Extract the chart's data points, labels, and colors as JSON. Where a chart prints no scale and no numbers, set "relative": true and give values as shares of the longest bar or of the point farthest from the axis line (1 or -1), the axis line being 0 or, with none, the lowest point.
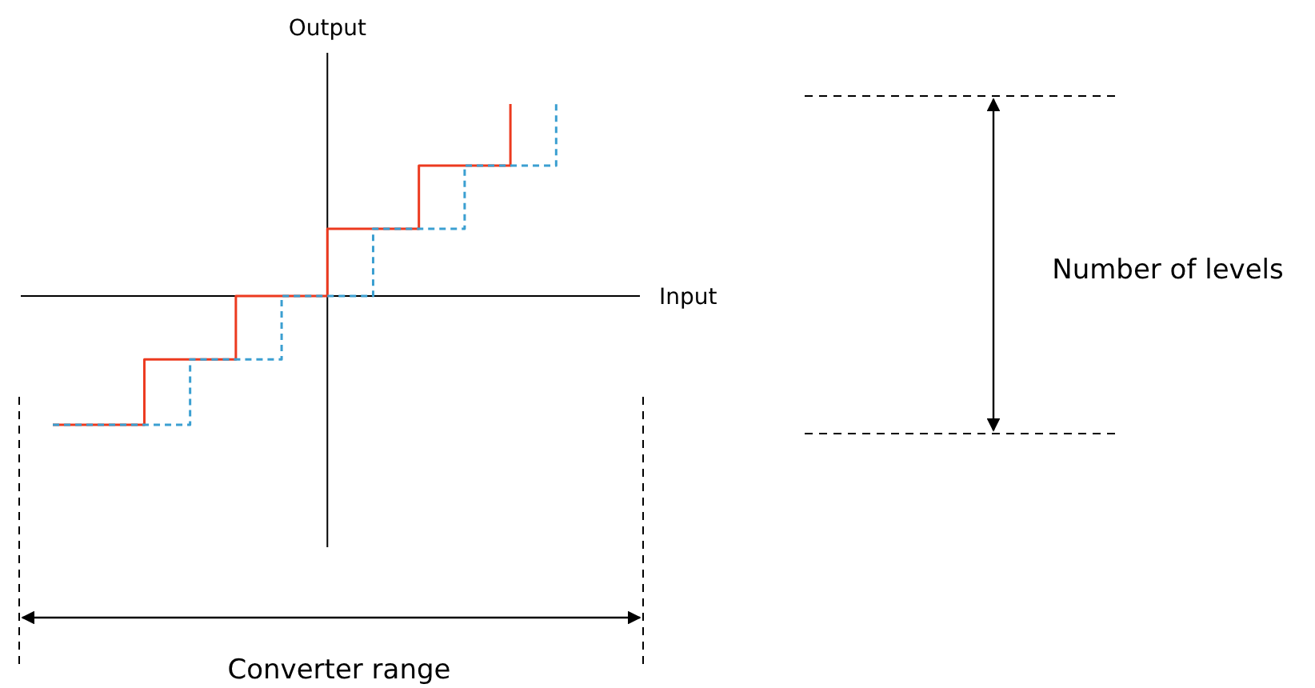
{
  "chart_data": {
    "type": "step",
    "xlabel": "Input",
    "ylabel": "Output",
    "relative": true,
    "marker": "none",
    "categories": [
      null,
      null,
      null,
      null,
      null,
      null,
      null,
      null,
      null,
      null,
      null,
      null
    ],
    "series": [
      {
        "color": "#ec3a1f",
        "line_style": "solid",
        "values": [
          -0.67,
          -0.67,
          -0.33,
          -0.33,
          0,
          0,
          0.35,
          0.35,
          0.68,
          0.68,
          1,
          null
        ]
      },
      {
        "color": "#3b9fd1",
        "line_style": "dashed",
        "values": [
          -0.67,
          -0.67,
          -0.67,
          -0.33,
          -0.33,
          0,
          0,
          0.35,
          0.35,
          0.68,
          0.68,
          1
        ]
      }
    ],
    "annotations": [
      "Number of levels",
      "Converter range"
    ]
  }
}
